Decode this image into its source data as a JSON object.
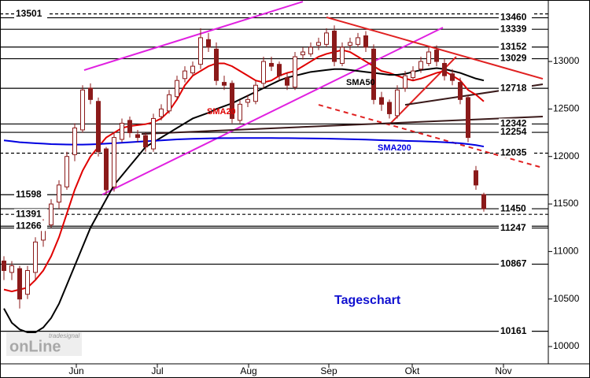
{
  "chart_data": {
    "type": "candlestick",
    "xlim": [
      -0.5,
      69.2
    ],
    "xticks": [
      {
        "value": 9.2,
        "label": "Jun"
      },
      {
        "value": 19.5,
        "label": "Jul"
      },
      {
        "value": 31.1,
        "label": "Aug"
      },
      {
        "value": 41.3,
        "label": "Sep"
      },
      {
        "value": 51.9,
        "label": "Okt"
      },
      {
        "value": 63.5,
        "label": "Nov"
      }
    ],
    "ylim": [
      9818,
      13647
    ],
    "yticks": [
      10000,
      10500,
      11000,
      11500,
      12000,
      12500,
      13000
    ],
    "candle_color": "#8b1a1a",
    "open": [
      10900,
      10780,
      10820,
      10550,
      10780,
      11120,
      11280,
      11520,
      11680,
      12020,
      12280,
      12720,
      12580,
      12080,
      11680,
      12180,
      12380,
      12230,
      12220,
      12080,
      12420,
      12480,
      12630,
      12820,
      12880,
      12970,
      13230,
      13130,
      12780,
      12770,
      12380,
      12570,
      12580,
      12770,
      12980,
      12970,
      12830,
      12730,
      13070,
      13080,
      13170,
      13180,
      13320,
      12980,
      13170,
      13180,
      13270,
      13130,
      12620,
      12570,
      12430,
      12720,
      12830,
      12920,
      12980,
      13120,
      12980,
      12870,
      12780,
      12620,
      11850,
      11600
    ],
    "high": [
      10950,
      10900,
      10850,
      10850,
      11150,
      11350,
      11550,
      11750,
      12050,
      12350,
      12750,
      12770,
      12620,
      12100,
      12250,
      12400,
      12420,
      12280,
      12250,
      12450,
      12550,
      12700,
      12850,
      12950,
      13000,
      13350,
      13300,
      13200,
      12850,
      12800,
      12600,
      12650,
      12800,
      13050,
      13050,
      13000,
      12880,
      13100,
      13150,
      13200,
      13250,
      13350,
      13380,
      13200,
      13250,
      13300,
      13320,
      13180,
      12680,
      12600,
      12750,
      12900,
      12950,
      13050,
      13150,
      13170,
      13030,
      12920,
      12830,
      12650,
      11900,
      11620
    ],
    "low": [
      10700,
      10700,
      10400,
      10500,
      10700,
      11050,
      11250,
      11450,
      11650,
      11950,
      12250,
      12550,
      12000,
      11600,
      11630,
      12150,
      12200,
      12150,
      12050,
      12050,
      12380,
      12450,
      12600,
      12780,
      12850,
      12920,
      13100,
      12750,
      12700,
      12350,
      12350,
      12520,
      12550,
      12720,
      12900,
      12800,
      12700,
      12700,
      13020,
      13050,
      13120,
      13150,
      12950,
      12950,
      13120,
      13150,
      13100,
      12550,
      12480,
      12400,
      12400,
      12680,
      12800,
      12880,
      12950,
      12950,
      12800,
      12750,
      12550,
      12150,
      11650,
      11420
    ],
    "close": [
      10800,
      10850,
      10500,
      10800,
      11100,
      11300,
      11500,
      11700,
      12000,
      12300,
      12700,
      12600,
      12050,
      11650,
      12200,
      12350,
      12250,
      12200,
      12100,
      12400,
      12500,
      12650,
      12800,
      12900,
      12950,
      13250,
      13150,
      12800,
      12750,
      12400,
      12550,
      12600,
      12750,
      13000,
      12950,
      12850,
      12750,
      13050,
      13100,
      13150,
      13200,
      13300,
      13000,
      13150,
      13200,
      13250,
      13150,
      12600,
      12550,
      12450,
      12700,
      12850,
      12900,
      13000,
      13100,
      13000,
      12850,
      12800,
      12600,
      12200,
      11700,
      11450
    ],
    "series": [
      {
        "name": "SMA20",
        "color": "#e00000",
        "values": [
          10600,
          10580,
          10600,
          10620,
          10700,
          10800,
          10950,
          11150,
          11400,
          11650,
          11850,
          12000,
          12100,
          12200,
          12250,
          12300,
          12320,
          12330,
          12340,
          12360,
          12400,
          12480,
          12600,
          12750,
          12850,
          12900,
          12950,
          12980,
          12980,
          12950,
          12900,
          12850,
          12800,
          12780,
          12800,
          12850,
          12880,
          12900,
          12950,
          13000,
          13050,
          13080,
          13100,
          13120,
          13100,
          13050,
          13000,
          12950,
          12900,
          12880,
          12850,
          12820,
          12800,
          12820,
          12850,
          12880,
          12900,
          12850,
          12800,
          12700,
          12650,
          12580
        ]
      },
      {
        "name": "SMA50",
        "color": "#000000",
        "values": [
          10400,
          10250,
          10180,
          10150,
          10150,
          10200,
          10300,
          10450,
          10650,
          10850,
          11050,
          11250,
          11400,
          11550,
          11700,
          11800,
          11900,
          12000,
          12100,
          12150,
          12200,
          12250,
          12300,
          12350,
          12400,
          12430,
          12460,
          12500,
          12530,
          12560,
          12600,
          12640,
          12680,
          12720,
          12760,
          12800,
          12830,
          12850,
          12870,
          12890,
          12900,
          12910,
          12920,
          12920,
          12910,
          12900,
          12890,
          12880,
          12870,
          12860,
          12860,
          12870,
          12890,
          12910,
          12920,
          12930,
          12920,
          12900,
          12880,
          12850,
          12820,
          12800
        ]
      },
      {
        "name": "SMA200",
        "color": "#0000e0",
        "values": [
          12170,
          12160,
          12150,
          12145,
          12140,
          12135,
          12130,
          12128,
          12126,
          12125,
          12125,
          12127,
          12130,
          12135,
          12140,
          12145,
          12150,
          12155,
          12160,
          12165,
          12170,
          12175,
          12180,
          12183,
          12186,
          12188,
          12190,
          12192,
          12193,
          12194,
          12195,
          12195,
          12195,
          12195,
          12195,
          12194,
          12193,
          12192,
          12191,
          12190,
          12189,
          12188,
          12186,
          12184,
          12182,
          12180,
          12178,
          12175,
          12172,
          12170,
          12168,
          12165,
          12162,
          12160,
          12157,
          12154,
          12150,
          12145,
          12140,
          12130,
          12120,
          12105
        ]
      }
    ],
    "trendlines": [
      {
        "color": "#e020e0",
        "dashed": false,
        "x": [
          10.2,
          38
        ],
        "y": [
          12909,
          13630
        ]
      },
      {
        "color": "#e020e0",
        "dashed": false,
        "x": [
          12.5,
          55.8
        ],
        "y": [
          11599,
          13357
        ]
      },
      {
        "color": "#e02020",
        "dashed": false,
        "x": [
          41,
          68.5
        ],
        "y": [
          13465,
          12818
        ]
      },
      {
        "color": "#e02020",
        "dashed": true,
        "x": [
          40,
          68.5
        ],
        "y": [
          12544,
          11881
        ]
      },
      {
        "color": "#e02020",
        "dashed": false,
        "x": [
          49,
          57.5
        ],
        "y": [
          12337,
          13050
        ]
      },
      {
        "color": "#3a1a1a",
        "dashed": false,
        "x": [
          17.5,
          68.5
        ],
        "y": [
          12237,
          12420
        ]
      },
      {
        "color": "#3a1a1a",
        "dashed": false,
        "x": [
          51,
          68.5
        ],
        "y": [
          12544,
          12760
        ]
      }
    ],
    "levels": [
      {
        "value": 13501,
        "side": "left",
        "dashed": true
      },
      {
        "value": 13460,
        "side": "right",
        "dashed": false
      },
      {
        "value": 13339,
        "side": "right",
        "dashed": false
      },
      {
        "value": 13152,
        "side": "right",
        "dashed": false
      },
      {
        "value": 13029,
        "side": "right",
        "dashed": false
      },
      {
        "value": 12718,
        "side": "right",
        "dashed": false
      },
      {
        "value": 12342,
        "side": "right",
        "dashed": false
      },
      {
        "value": 12254,
        "side": "right",
        "dashed": false
      },
      {
        "value": 12035,
        "side": "right",
        "dashed": true
      },
      {
        "value": 11598,
        "side": "left",
        "dashed": false
      },
      {
        "value": 11450,
        "side": "right",
        "dashed": false
      },
      {
        "value": 11391,
        "side": "left",
        "dashed": true
      },
      {
        "value": 11266,
        "side": "left",
        "dashed": false
      },
      {
        "value": 11247,
        "side": "right",
        "dashed": false
      },
      {
        "value": 10867,
        "side": "right",
        "dashed": false
      },
      {
        "value": 10161,
        "side": "right",
        "dashed": false
      }
    ],
    "annotation": "Tageschart",
    "watermark": [
      "tradesignal",
      "onLine"
    ]
  }
}
